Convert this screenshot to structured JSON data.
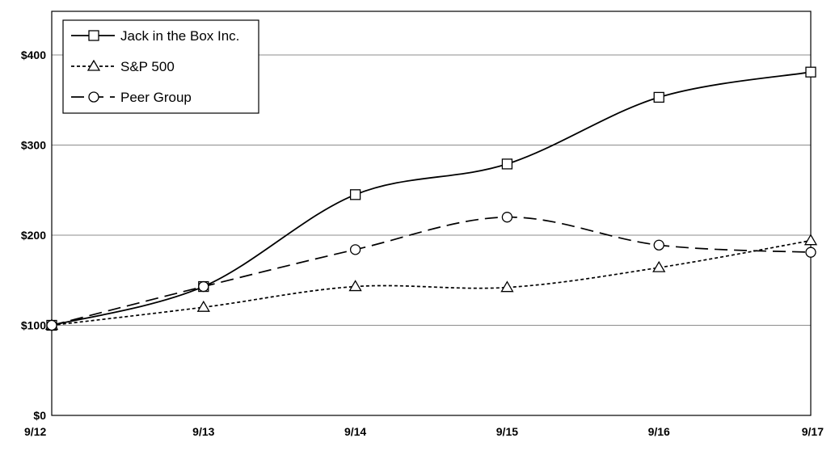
{
  "chart_data": {
    "type": "line",
    "title": "",
    "xlabel": "",
    "ylabel": "",
    "categories": [
      "9/12",
      "9/13",
      "9/14",
      "9/15",
      "9/16",
      "9/17"
    ],
    "ylim": [
      0,
      400
    ],
    "ytick_values": [
      0,
      100,
      200,
      300,
      400
    ],
    "ytick_labels": [
      "$0",
      "$100",
      "$200",
      "$300",
      "$400"
    ],
    "grid": "horizontal",
    "legend_position": "top-left",
    "series": [
      {
        "name": "Jack in the Box Inc.",
        "marker": "square",
        "dash": "solid",
        "values": [
          100,
          143,
          245,
          279,
          353,
          381
        ]
      },
      {
        "name": "S&P 500",
        "marker": "triangle",
        "dash": "dotted",
        "values": [
          100,
          120,
          143,
          142,
          164,
          194
        ]
      },
      {
        "name": "Peer Group",
        "marker": "circle",
        "dash": "dashed",
        "values": [
          100,
          143,
          184,
          220,
          189,
          181
        ]
      }
    ]
  },
  "colors": {
    "line": "#000000",
    "grid": "#8c8c8c",
    "background": "#ffffff"
  }
}
